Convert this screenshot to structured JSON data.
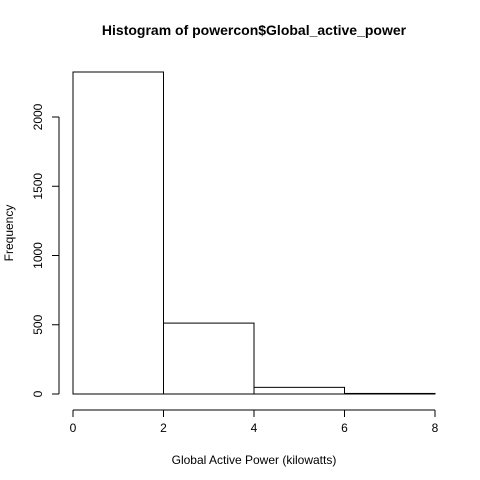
{
  "chart_data": {
    "type": "bar",
    "title": "Histogram of powercon$Global_active_power",
    "xlabel": "Global Active Power (kilowatts)",
    "ylabel": "Frequency",
    "bins": [
      {
        "from": 0,
        "to": 2,
        "count": 2325
      },
      {
        "from": 2,
        "to": 4,
        "count": 512
      },
      {
        "from": 4,
        "to": 6,
        "count": 48
      },
      {
        "from": 6,
        "to": 8,
        "count": 4
      }
    ],
    "xlim": [
      0,
      8
    ],
    "ylim": [
      0,
      2325
    ],
    "x_ticks": [
      "0",
      "2",
      "4",
      "6",
      "8"
    ],
    "y_ticks": [
      "0",
      "500",
      "1000",
      "1500",
      "2000"
    ],
    "grid": false,
    "colors": {
      "bar_fill": "#ffffff",
      "bar_stroke": "#000000"
    }
  }
}
